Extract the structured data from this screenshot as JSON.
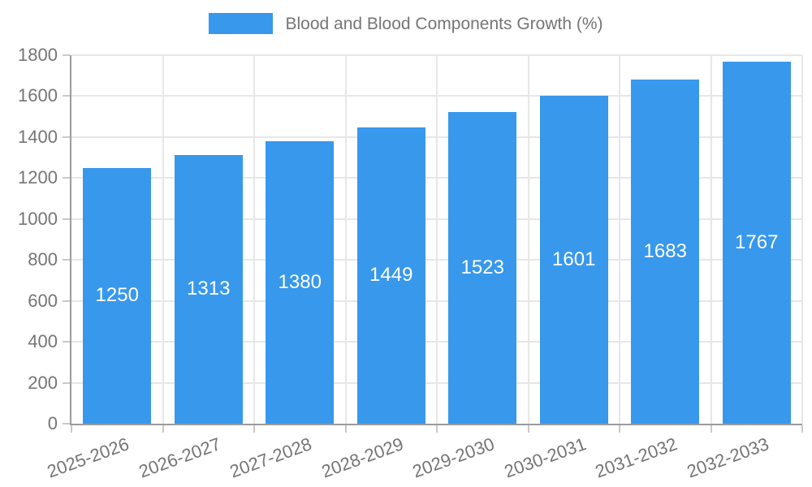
{
  "chart_data": {
    "type": "bar",
    "title": "Blood and Blood Components Growth (%)",
    "categories": [
      "2025-2026",
      "2026-2027",
      "2027-2028",
      "2028-2029",
      "2029-2030",
      "2030-2031",
      "2031-2032",
      "2032-2033"
    ],
    "series": [
      {
        "name": "Blood and Blood Components Growth (%)",
        "values": [
          1250,
          1313,
          1380,
          1449,
          1523,
          1601,
          1683,
          1767
        ]
      }
    ],
    "value_labels": [
      "1250",
      "1313",
      "1380",
      "1449",
      "1523",
      "1601",
      "1683",
      "1767"
    ],
    "xlabel": "",
    "ylabel": "",
    "ylim": [
      0,
      1800
    ],
    "ytick_step": 200,
    "ytick_labels": [
      "0",
      "200",
      "400",
      "600",
      "800",
      "1000",
      "1200",
      "1400",
      "1600",
      "1800"
    ],
    "grid": true,
    "legend_position": "top",
    "colors": {
      "bar": "#3898ec",
      "bar_value_text": "#ffffff",
      "axis_line": "#9b9b9b",
      "gridline": "#e7e7e7",
      "tick_mark": "#c9c9c9",
      "tick_text": "#757575",
      "legend_text": "#757575",
      "background": "#ffffff"
    }
  },
  "legend": {
    "label": "Blood and Blood Components Growth (%)"
  }
}
